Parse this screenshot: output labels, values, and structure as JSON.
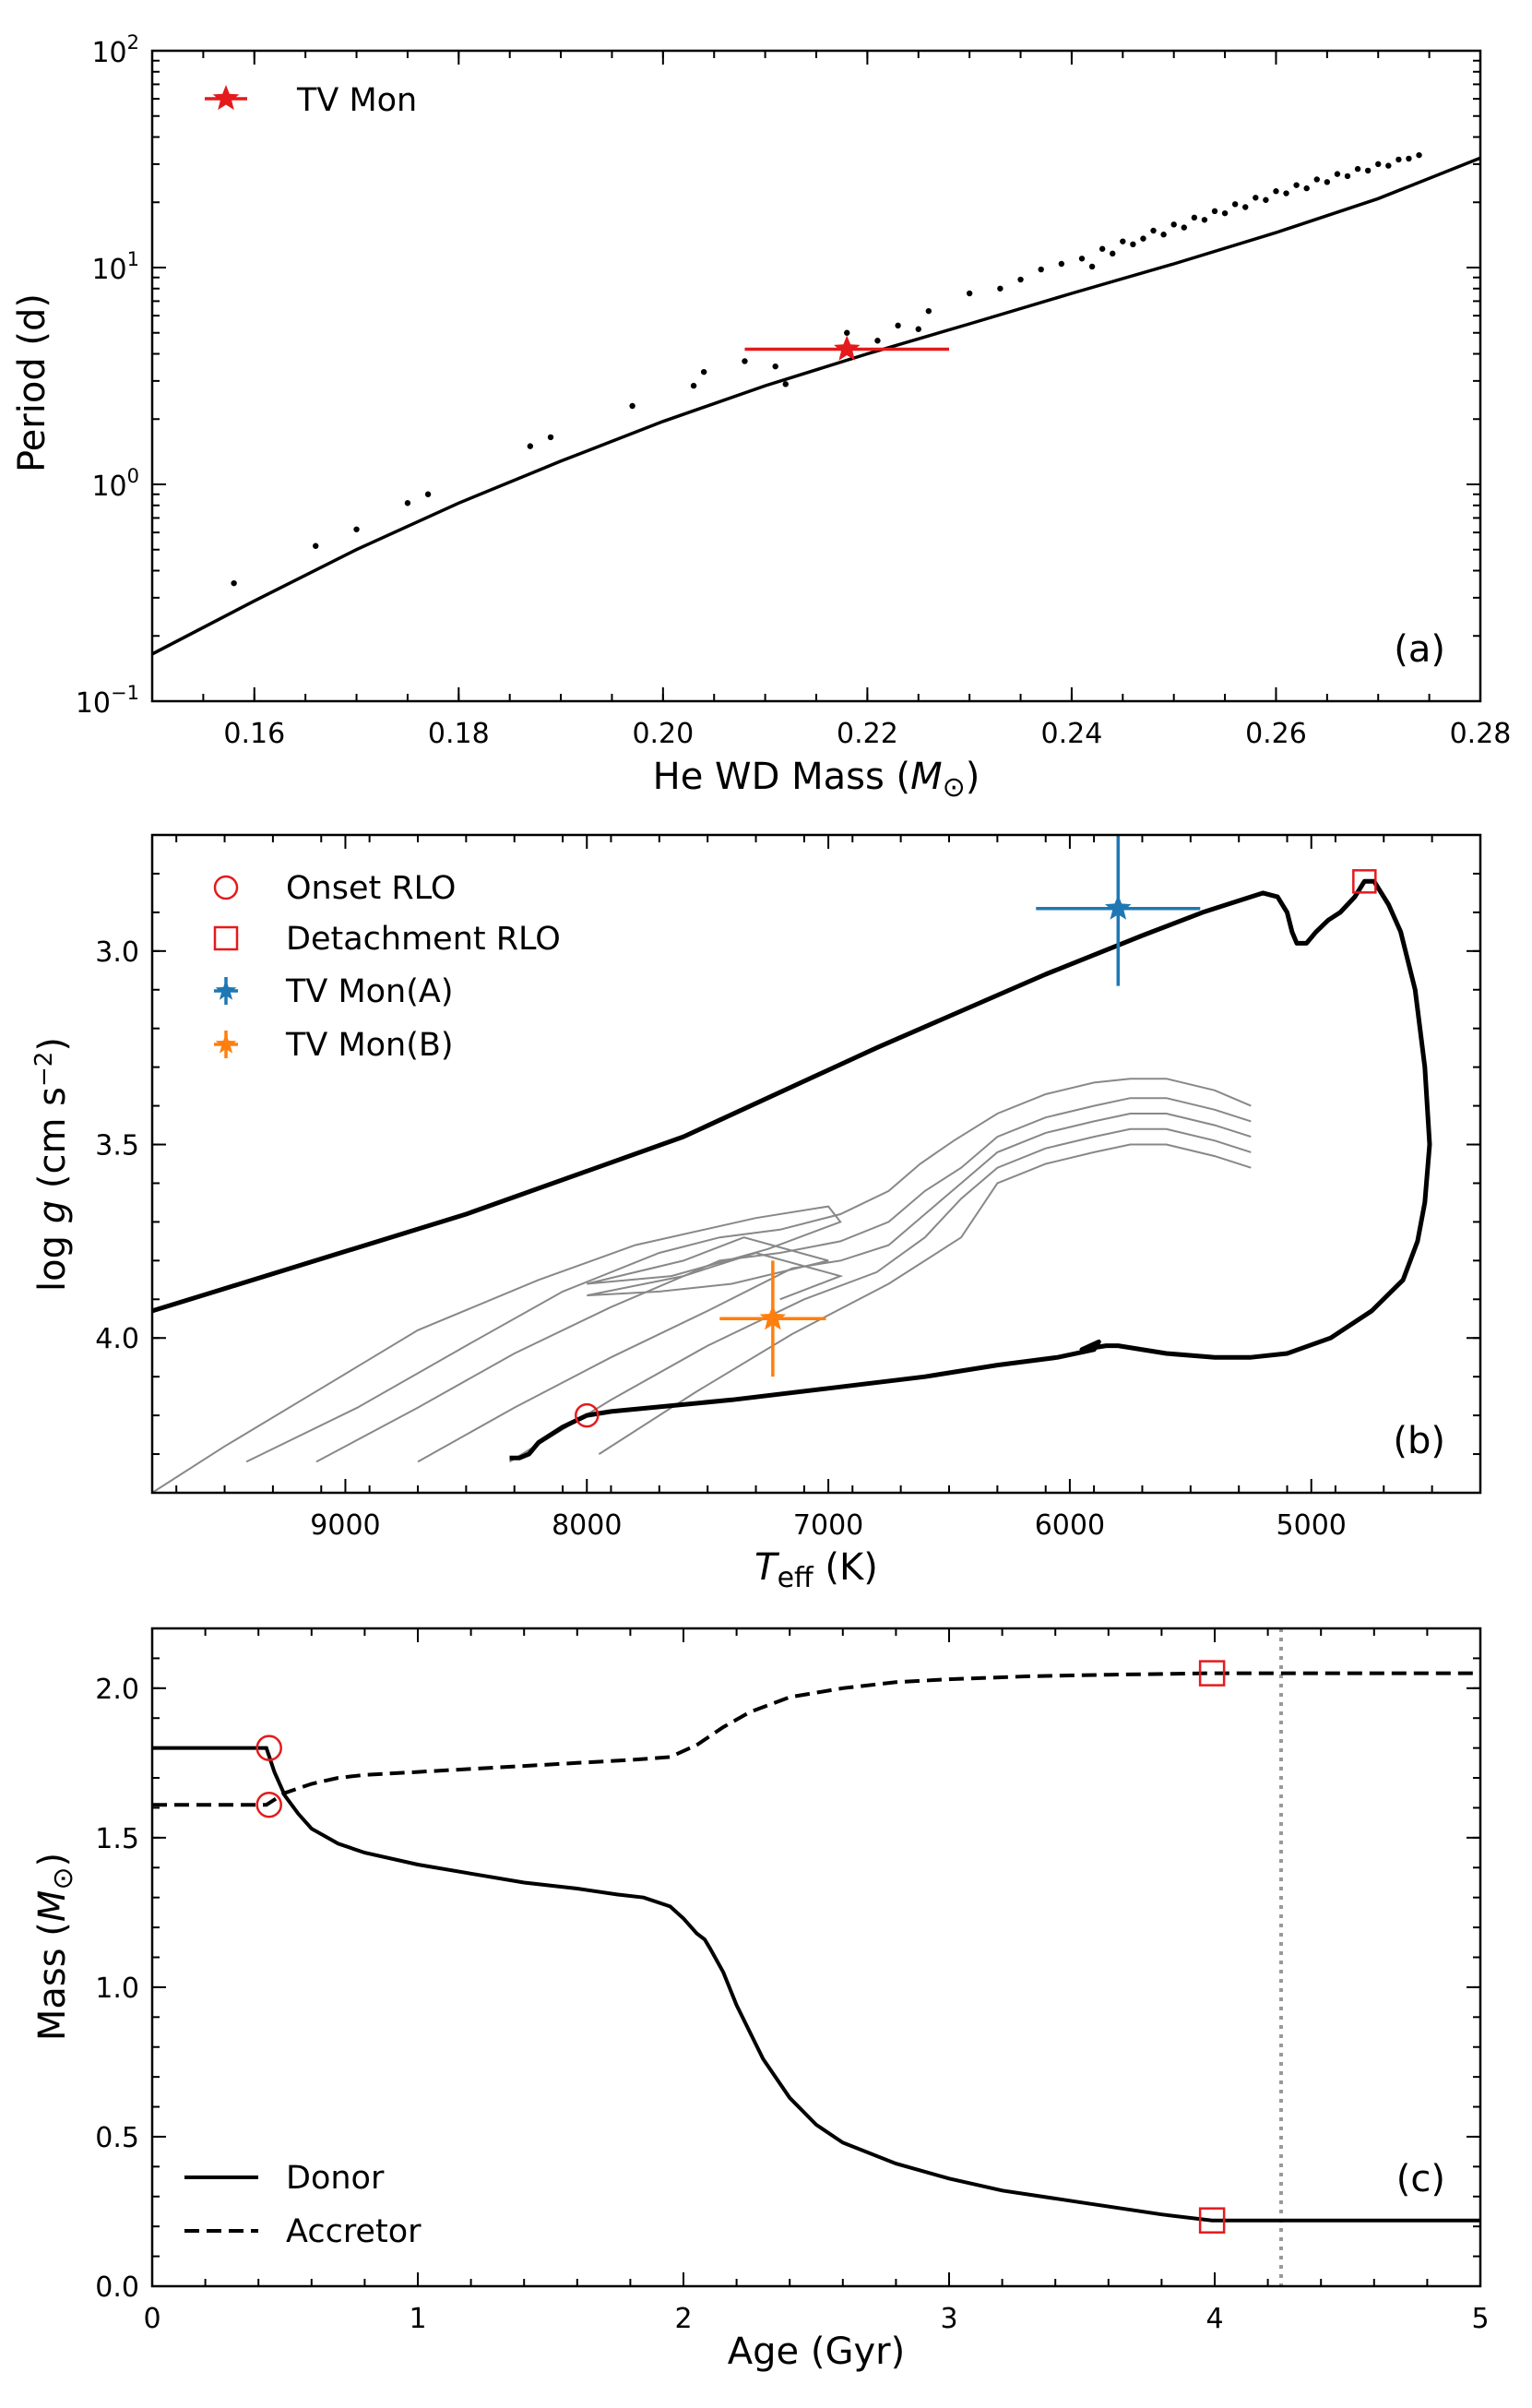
{
  "colors": {
    "red": "#e41a1c",
    "blue": "#1f77b4",
    "orange": "#ff7f0e",
    "gray_track": "#888888",
    "vline": "#999999",
    "black": "#000000"
  },
  "chart_data": [
    {
      "panel": "a",
      "type": "scatter",
      "xlabel": "He WD Mass (M⊙)",
      "ylabel": "Period (d)",
      "xlim": [
        0.15,
        0.28
      ],
      "ylim": [
        0.1,
        100
      ],
      "yscale": "log",
      "panel_label": "(a)",
      "x_ticks": [
        0.16,
        0.18,
        0.2,
        0.22,
        0.24,
        0.26,
        0.28
      ],
      "x_tick_labels": [
        "0.16",
        "0.18",
        "0.20",
        "0.22",
        "0.24",
        "0.26",
        "0.28"
      ],
      "y_ticks": [
        0.1,
        1,
        10,
        100
      ],
      "y_tick_labels": [
        {
          "base": "10",
          "exp": "−1"
        },
        {
          "base": "10",
          "exp": "0"
        },
        {
          "base": "10",
          "exp": "1"
        },
        {
          "base": "10",
          "exp": "2"
        }
      ],
      "legend": [
        {
          "label": "TV Mon",
          "marker": "star",
          "color": "red"
        }
      ],
      "series": [
        {
          "name": "Model scatter",
          "type": "scatter",
          "x": [
            0.158,
            0.166,
            0.17,
            0.175,
            0.177,
            0.187,
            0.189,
            0.197,
            0.203,
            0.204,
            0.208,
            0.211,
            0.212,
            0.218,
            0.221,
            0.223,
            0.225,
            0.226,
            0.23,
            0.233,
            0.235,
            0.237,
            0.239,
            0.241,
            0.242,
            0.243,
            0.244,
            0.245,
            0.246,
            0.247,
            0.248,
            0.249,
            0.25,
            0.251,
            0.252,
            0.253,
            0.254,
            0.255,
            0.256,
            0.257,
            0.258,
            0.259,
            0.26,
            0.261,
            0.262,
            0.263,
            0.264,
            0.265,
            0.266,
            0.267,
            0.268,
            0.269,
            0.27,
            0.271,
            0.272,
            0.273,
            0.274
          ],
          "y": [
            0.35,
            0.52,
            0.62,
            0.82,
            0.9,
            1.5,
            1.65,
            2.3,
            2.85,
            3.3,
            3.7,
            3.5,
            2.9,
            5.0,
            4.6,
            5.4,
            5.2,
            6.3,
            7.6,
            8.0,
            8.8,
            9.8,
            10.4,
            11.0,
            10.1,
            12.2,
            11.6,
            13.2,
            12.8,
            13.6,
            14.8,
            14.2,
            15.8,
            15.3,
            17.0,
            16.6,
            18.2,
            17.8,
            19.6,
            19.0,
            21.0,
            20.5,
            22.5,
            22.0,
            24.0,
            23.2,
            25.5,
            24.8,
            27.0,
            26.4,
            28.5,
            28.0,
            30.0,
            29.5,
            31.5,
            31.8,
            33.0
          ]
        },
        {
          "name": "Relation",
          "type": "line",
          "x": [
            0.15,
            0.16,
            0.17,
            0.18,
            0.19,
            0.2,
            0.21,
            0.22,
            0.23,
            0.24,
            0.25,
            0.26,
            0.27,
            0.28
          ],
          "y": [
            0.165,
            0.29,
            0.5,
            0.82,
            1.28,
            1.95,
            2.85,
            4.0,
            5.5,
            7.6,
            10.4,
            14.5,
            20.8,
            32.0
          ]
        },
        {
          "name": "TV Mon",
          "type": "point",
          "x": [
            0.218
          ],
          "y": [
            4.2
          ],
          "x_err": [
            0.01
          ]
        }
      ]
    },
    {
      "panel": "b",
      "type": "line",
      "xlabel": "T_eff (K)",
      "ylabel": "log g (cm s⁻²)",
      "xlim": [
        9800,
        4300
      ],
      "ylim": [
        4.4,
        2.7
      ],
      "panel_label": "(b)",
      "x_ticks": [
        9000,
        8000,
        7000,
        6000,
        5000
      ],
      "x_tick_labels": [
        "9000",
        "8000",
        "7000",
        "6000",
        "5000"
      ],
      "y_ticks": [
        3.0,
        3.5,
        4.0
      ],
      "y_tick_labels": [
        "3.0",
        "3.5",
        "4.0"
      ],
      "legend": [
        {
          "label": "Onset RLO",
          "marker": "circle",
          "color": "red"
        },
        {
          "label": "Detachment RLO",
          "marker": "square",
          "color": "red"
        },
        {
          "label": "TV Mon(A)",
          "marker": "errorbar-star",
          "color": "blue"
        },
        {
          "label": "TV Mon(B)",
          "marker": "errorbar-star",
          "color": "orange"
        }
      ],
      "series": [
        {
          "name": "Donor track",
          "type": "line",
          "x": [
            8320,
            8280,
            8240,
            8200,
            8100,
            8000,
            7900,
            7400,
            7000,
            6600,
            6300,
            6050,
            5900,
            5880,
            5950,
            5850,
            5800,
            5600,
            5400,
            5250,
            5100,
            4920,
            4750,
            4620,
            4560,
            4530,
            4510,
            4530,
            4570,
            4630,
            4680,
            4740,
            4780,
            4820,
            4880,
            4930,
            4980,
            5020,
            5060,
            5080,
            5100,
            5140,
            5200,
            5300,
            5450,
            5700,
            6100,
            6800,
            7600,
            8500,
            9800
          ],
          "y": [
            4.31,
            4.31,
            4.3,
            4.27,
            4.23,
            4.2,
            4.19,
            4.16,
            4.13,
            4.1,
            4.07,
            4.05,
            4.03,
            4.01,
            4.03,
            4.02,
            4.02,
            4.04,
            4.05,
            4.05,
            4.04,
            4.0,
            3.93,
            3.85,
            3.75,
            3.65,
            3.5,
            3.3,
            3.1,
            2.95,
            2.88,
            2.82,
            2.82,
            2.86,
            2.9,
            2.92,
            2.95,
            2.98,
            2.98,
            2.95,
            2.9,
            2.86,
            2.85,
            2.87,
            2.9,
            2.96,
            3.06,
            3.25,
            3.48,
            3.68,
            3.93
          ]
        },
        {
          "name": "Gray track 1",
          "type": "line",
          "x": [
            9410,
            8950,
            8500,
            8100,
            7700,
            7450,
            7200,
            6950,
            6750,
            6620,
            6480,
            6300,
            6100,
            5900,
            5750,
            5600,
            5400,
            5250
          ],
          "y": [
            4.32,
            4.18,
            4.02,
            3.88,
            3.78,
            3.74,
            3.72,
            3.68,
            3.62,
            3.55,
            3.49,
            3.42,
            3.37,
            3.34,
            3.33,
            3.33,
            3.36,
            3.4
          ]
        },
        {
          "name": "Gray track 2",
          "type": "line",
          "x": [
            9120,
            8700,
            8300,
            7900,
            7450,
            7200,
            6950,
            6750,
            6600,
            6450,
            6300,
            6100,
            5900,
            5750,
            5600,
            5400,
            5250
          ],
          "y": [
            4.32,
            4.18,
            4.04,
            3.92,
            3.8,
            3.78,
            3.75,
            3.7,
            3.62,
            3.56,
            3.48,
            3.43,
            3.4,
            3.38,
            3.38,
            3.41,
            3.44
          ]
        },
        {
          "name": "Gray track 3",
          "type": "line",
          "x": [
            8700,
            8300,
            7900,
            7500,
            7150,
            6950,
            6750,
            6600,
            6450,
            6300,
            6100,
            5900,
            5750,
            5600,
            5400,
            5250
          ],
          "y": [
            4.32,
            4.18,
            4.05,
            3.93,
            3.82,
            3.8,
            3.76,
            3.68,
            3.6,
            3.52,
            3.47,
            3.44,
            3.42,
            3.42,
            3.45,
            3.48
          ]
        },
        {
          "name": "Gray track 4",
          "type": "line",
          "x": [
            8320,
            7900,
            7500,
            7100,
            6800,
            6600,
            6450,
            6300,
            6100,
            5900,
            5750,
            5600,
            5400,
            5250
          ],
          "y": [
            4.32,
            4.16,
            4.02,
            3.9,
            3.83,
            3.74,
            3.64,
            3.56,
            3.51,
            3.48,
            3.46,
            3.46,
            3.49,
            3.52
          ]
        },
        {
          "name": "Gray track 5",
          "type": "line",
          "x": [
            7950,
            7550,
            7150,
            6750,
            6450,
            6300,
            6100,
            5900,
            5750,
            5600,
            5400,
            5250
          ],
          "y": [
            4.3,
            4.14,
            3.99,
            3.86,
            3.74,
            3.6,
            3.55,
            3.52,
            3.5,
            3.5,
            3.53,
            3.56
          ]
        },
        {
          "name": "Gray zigzag",
          "type": "line",
          "x": [
            9800,
            9500,
            9100,
            8700,
            8200,
            7800,
            7300,
            7000,
            6950,
            7250,
            7650,
            8000,
            7600,
            7350,
            7000,
            7400,
            7700,
            8000,
            7600,
            7300,
            6950,
            7200
          ],
          "y": [
            4.4,
            4.28,
            4.13,
            3.98,
            3.85,
            3.76,
            3.69,
            3.66,
            3.7,
            3.77,
            3.84,
            3.86,
            3.8,
            3.74,
            3.8,
            3.86,
            3.88,
            3.89,
            3.84,
            3.78,
            3.84,
            3.9
          ]
        },
        {
          "name": "Onset RLO",
          "type": "marker",
          "marker": "circle",
          "x": [
            8000
          ],
          "y": [
            4.2
          ]
        },
        {
          "name": "Detachment RLO",
          "type": "marker",
          "marker": "square",
          "x": [
            4780
          ],
          "y": [
            2.82
          ]
        },
        {
          "name": "TV Mon(A)",
          "type": "errorbar",
          "x": [
            5800
          ],
          "y": [
            2.89
          ],
          "x_err": [
            340
          ],
          "y_err": [
            0.2
          ]
        },
        {
          "name": "TV Mon(B)",
          "type": "errorbar",
          "x": [
            7230
          ],
          "y": [
            3.95
          ],
          "x_err": [
            220
          ],
          "y_err": [
            0.15
          ]
        }
      ]
    },
    {
      "panel": "c",
      "type": "line",
      "xlabel": "Age (Gyr)",
      "ylabel": "Mass (M⊙)",
      "xlim": [
        0,
        5
      ],
      "ylim": [
        0,
        2.2
      ],
      "panel_label": "(c)",
      "x_ticks": [
        0,
        1,
        2,
        3,
        4,
        5
      ],
      "x_tick_labels": [
        "0",
        "1",
        "2",
        "3",
        "4",
        "5"
      ],
      "y_ticks": [
        0.0,
        0.5,
        1.0,
        1.5,
        2.0
      ],
      "y_tick_labels": [
        "0.0",
        "0.5",
        "1.0",
        "1.5",
        "2.0"
      ],
      "legend": [
        {
          "label": "Donor",
          "linestyle": "solid"
        },
        {
          "label": "Accretor",
          "linestyle": "dashed"
        }
      ],
      "vline_x": 4.25,
      "series": [
        {
          "name": "Donor",
          "type": "line",
          "linestyle": "solid",
          "x": [
            0,
            0.43,
            0.46,
            0.5,
            0.55,
            0.6,
            0.7,
            0.8,
            1.0,
            1.2,
            1.4,
            1.6,
            1.75,
            1.85,
            1.95,
            2.0,
            2.03,
            2.05,
            2.08,
            2.1,
            2.15,
            2.2,
            2.3,
            2.4,
            2.5,
            2.6,
            2.8,
            3.0,
            3.2,
            3.5,
            3.8,
            3.99,
            4.2,
            4.6,
            5.0
          ],
          "y": [
            1.8,
            1.8,
            1.72,
            1.64,
            1.58,
            1.53,
            1.48,
            1.45,
            1.41,
            1.38,
            1.35,
            1.33,
            1.31,
            1.3,
            1.27,
            1.23,
            1.2,
            1.18,
            1.16,
            1.13,
            1.05,
            0.94,
            0.76,
            0.63,
            0.54,
            0.48,
            0.41,
            0.36,
            0.32,
            0.28,
            0.24,
            0.22,
            0.22,
            0.22,
            0.22
          ]
        },
        {
          "name": "Accretor",
          "type": "line",
          "linestyle": "dashed",
          "x": [
            0,
            0.43,
            0.5,
            0.6,
            0.7,
            0.8,
            1.0,
            1.2,
            1.4,
            1.6,
            1.8,
            1.95,
            2.05,
            2.15,
            2.25,
            2.4,
            2.6,
            2.8,
            3.0,
            3.3,
            3.6,
            3.99,
            4.3,
            5.0
          ],
          "y": [
            1.61,
            1.61,
            1.65,
            1.68,
            1.7,
            1.71,
            1.72,
            1.73,
            1.74,
            1.75,
            1.76,
            1.77,
            1.81,
            1.87,
            1.92,
            1.97,
            2.0,
            2.02,
            2.03,
            2.04,
            2.045,
            2.05,
            2.05,
            2.05
          ]
        },
        {
          "name": "Onset RLO",
          "type": "marker",
          "marker": "circle",
          "x": [
            0.44,
            0.44
          ],
          "y": [
            1.8,
            1.61
          ]
        },
        {
          "name": "Detachment RLO",
          "type": "marker",
          "marker": "square",
          "x": [
            3.99,
            3.99
          ],
          "y": [
            2.05,
            0.22
          ]
        }
      ]
    }
  ]
}
